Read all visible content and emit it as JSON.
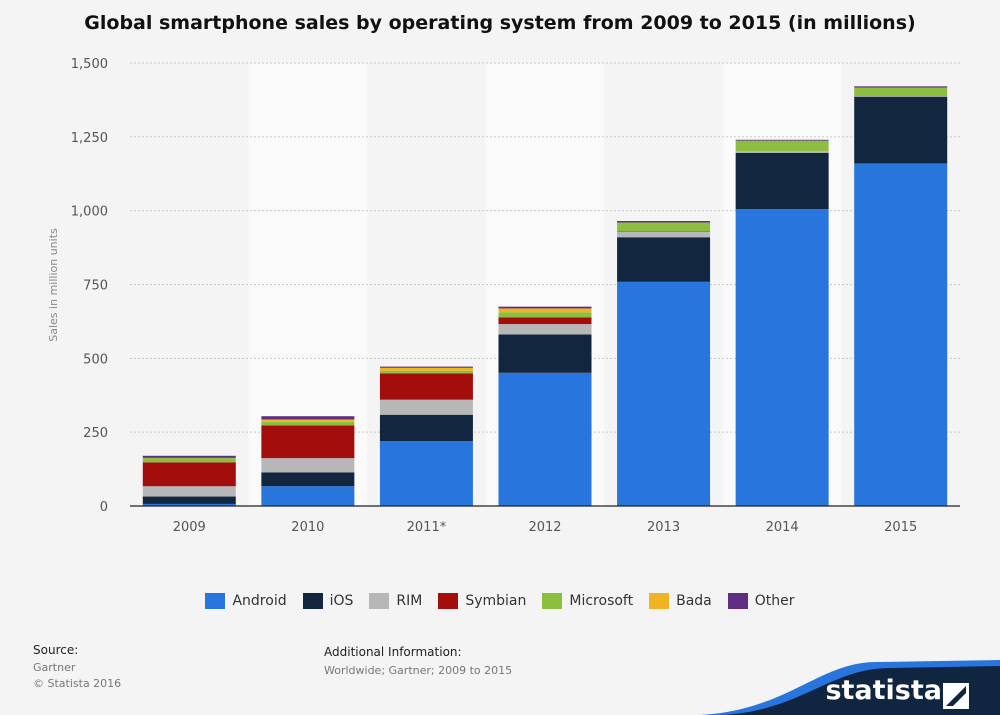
{
  "title": "Global smartphone sales by operating system from 2009 to 2015 (in millions)",
  "chart_data": {
    "type": "bar",
    "stacked": true,
    "categories": [
      "2009",
      "2010",
      "2011*",
      "2012",
      "2013",
      "2014",
      "2015"
    ],
    "series": [
      {
        "name": "Android",
        "color": "#2876dd",
        "values": [
          7,
          67,
          220,
          451,
          759,
          1005,
          1160
        ]
      },
      {
        "name": "iOS",
        "color": "#12263f",
        "values": [
          25,
          47,
          89,
          130,
          151,
          191,
          226
        ]
      },
      {
        "name": "RIM",
        "color": "#b7b7b7",
        "values": [
          35,
          48,
          51,
          35,
          19,
          6,
          2
        ]
      },
      {
        "name": "Symbian",
        "color": "#a30d0b",
        "values": [
          81,
          111,
          89,
          23,
          1,
          0,
          0
        ]
      },
      {
        "name": "Microsoft",
        "color": "#8cbf3f",
        "values": [
          15,
          12,
          9,
          17,
          30,
          35,
          29
        ]
      },
      {
        "name": "Bada",
        "color": "#f0b324",
        "values": [
          0,
          8,
          10,
          13,
          0,
          0,
          0
        ]
      },
      {
        "name": "Other",
        "color": "#5f2e82",
        "values": [
          7,
          11,
          4,
          6,
          5,
          3,
          4
        ]
      }
    ],
    "yticks": [
      0,
      250,
      500,
      750,
      1000,
      1250,
      1500
    ],
    "ytick_labels": [
      "0",
      "250",
      "500",
      "750",
      "1,000",
      "1,250",
      "1,500"
    ],
    "ylim": [
      0,
      1500
    ],
    "ylabel": "Sales in million units",
    "xlabel": "",
    "grid": true,
    "legend_position": "bottom"
  },
  "source": {
    "label": "Source:",
    "lines": [
      "Gartner",
      "© Statista 2016"
    ]
  },
  "additional_info": {
    "label": "Additional Information:",
    "text": "Worldwide; Gartner; 2009 to 2015"
  },
  "logo": "statista"
}
